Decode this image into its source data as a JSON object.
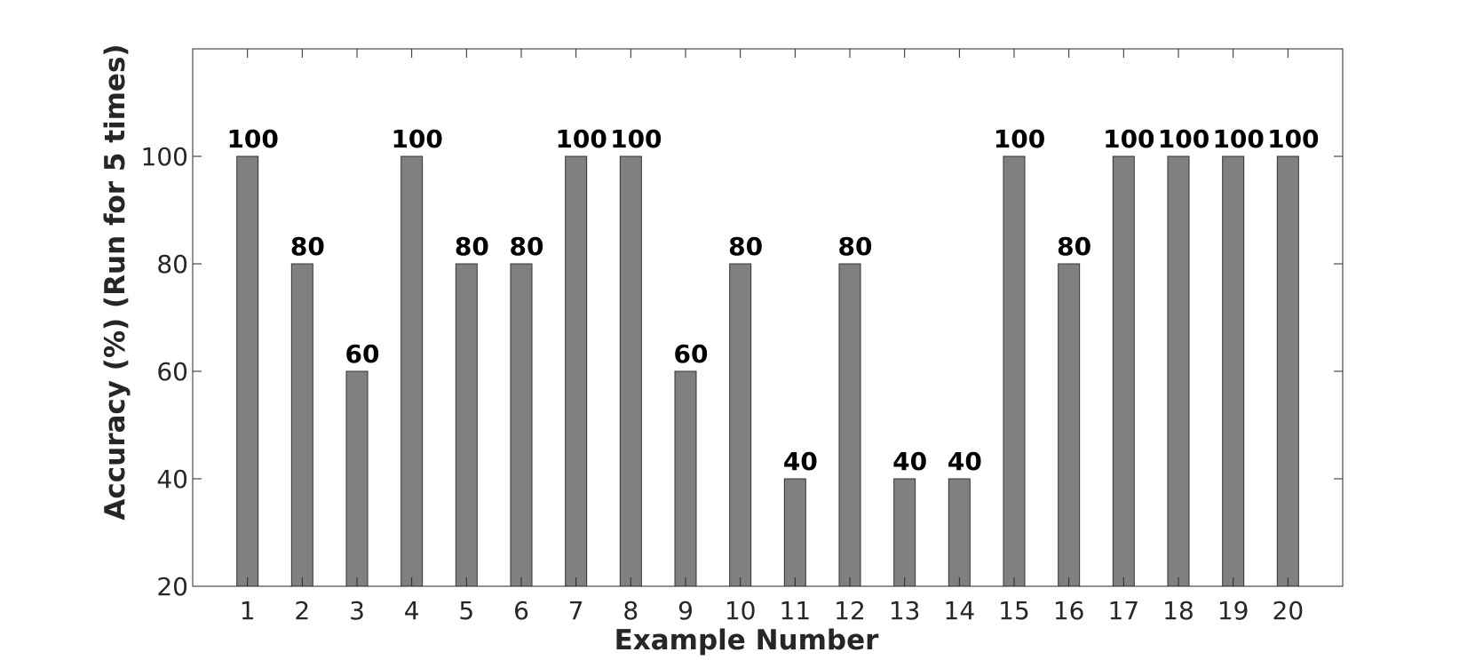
{
  "chart_data": {
    "type": "bar",
    "title": "",
    "xlabel": "Example Number",
    "ylabel": "Accuracy (%) (Run for 5 times)",
    "categories": [
      "1",
      "2",
      "3",
      "4",
      "5",
      "6",
      "7",
      "8",
      "9",
      "10",
      "11",
      "12",
      "13",
      "14",
      "15",
      "16",
      "17",
      "18",
      "19",
      "20"
    ],
    "values": [
      100,
      80,
      60,
      100,
      80,
      80,
      100,
      100,
      60,
      80,
      40,
      80,
      40,
      40,
      100,
      80,
      100,
      100,
      100,
      100
    ],
    "data_labels": [
      "100",
      "80",
      "60",
      "100",
      "80",
      "80",
      "100",
      "100",
      "60",
      "80",
      "40",
      "80",
      "40",
      "40",
      "100",
      "80",
      "100",
      "100",
      "100",
      "100"
    ],
    "ylim": [
      20,
      120
    ],
    "yticks": [
      20,
      40,
      60,
      80,
      100
    ],
    "ytick_labels": [
      "20",
      "40",
      "60",
      "80",
      "100"
    ],
    "grid": false,
    "legend": "none",
    "colors": {
      "bar": "#808080",
      "bar_edge": "#333333",
      "axis": "#262626",
      "label": "#000000"
    }
  }
}
